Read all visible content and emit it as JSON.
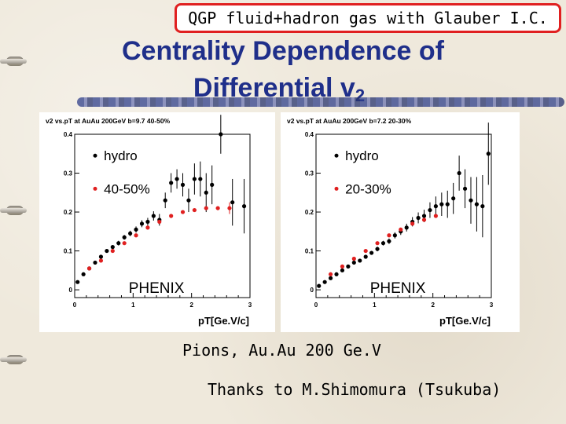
{
  "banner": "QGP fluid+hadron gas with Glauber I.C.",
  "title_line1": "Centrality Dependence of",
  "title_line2_text": "Differential v",
  "title_line2_sub": "2",
  "caption_line1": "Pions, Au.Au 200 Ge.V",
  "caption_line2": "Thanks to M.Shimomura (Tsukuba)",
  "colors": {
    "title": "#1f2f8a",
    "banner_border": "#e02020",
    "hydro": "#e02020",
    "data": "#000000"
  },
  "chart_data": [
    {
      "type": "scatter",
      "title": "v2 vs.pT at AuAu 200GeV b=9.7 40-50%",
      "xlabel": "pT[Ge.V/c]",
      "ylabel": "",
      "xlim": [
        0,
        3
      ],
      "ylim": [
        -0.02,
        0.4
      ],
      "x_ticks": [
        "0",
        "1",
        "2",
        "3"
      ],
      "y_ticks": [
        "0",
        "0.1",
        "0.2",
        "0.3",
        "0.4"
      ],
      "legend": [
        "hydro",
        "40-50%"
      ],
      "annotation": "PHENIX",
      "series": [
        {
          "name": "hydro",
          "color": "#000000",
          "x": [
            0.05,
            0.15,
            0.25,
            0.35,
            0.45,
            0.55,
            0.65,
            0.75,
            0.85,
            0.95,
            1.05,
            1.15,
            1.25,
            1.35,
            1.45,
            1.55,
            1.65,
            1.75,
            1.85,
            1.95,
            2.05,
            2.15,
            2.25,
            2.35,
            2.5,
            2.7,
            2.9
          ],
          "y": [
            0.02,
            0.04,
            0.055,
            0.07,
            0.085,
            0.1,
            0.11,
            0.12,
            0.135,
            0.145,
            0.155,
            0.17,
            0.175,
            0.19,
            0.18,
            0.23,
            0.275,
            0.285,
            0.27,
            0.23,
            0.285,
            0.285,
            0.25,
            0.27,
            0.4,
            0.225,
            0.215
          ],
          "err": [
            0.003,
            0.003,
            0.004,
            0.004,
            0.005,
            0.005,
            0.005,
            0.006,
            0.006,
            0.007,
            0.008,
            0.009,
            0.01,
            0.012,
            0.015,
            0.02,
            0.025,
            0.025,
            0.03,
            0.03,
            0.04,
            0.045,
            0.05,
            0.05,
            0.05,
            0.06,
            0.07
          ]
        },
        {
          "name": "40-50%",
          "color": "#e02020",
          "x": [
            0.25,
            0.45,
            0.65,
            0.85,
            1.05,
            1.25,
            1.45,
            1.65,
            1.85,
            2.05,
            2.25,
            2.45,
            2.65
          ],
          "y": [
            0.055,
            0.075,
            0.1,
            0.12,
            0.14,
            0.16,
            0.175,
            0.19,
            0.2,
            0.205,
            0.21,
            0.21,
            0.21
          ],
          "err": [
            0,
            0,
            0,
            0,
            0,
            0,
            0,
            0,
            0,
            0,
            0,
            0,
            0.015
          ]
        }
      ]
    },
    {
      "type": "scatter",
      "title": "v2 vs.pT at AuAu 200GeV b=7.2 20-30%",
      "xlabel": "pT[Ge.V/c]",
      "ylabel": "",
      "xlim": [
        0,
        3
      ],
      "ylim": [
        -0.02,
        0.4
      ],
      "x_ticks": [
        "0",
        "1",
        "2",
        "3"
      ],
      "y_ticks": [
        "0",
        "0.1",
        "0.2",
        "0.3",
        "0.4"
      ],
      "legend": [
        "hydro",
        "20-30%"
      ],
      "annotation": "PHENIX",
      "series": [
        {
          "name": "hydro",
          "color": "#000000",
          "x": [
            0.05,
            0.15,
            0.25,
            0.35,
            0.45,
            0.55,
            0.65,
            0.75,
            0.85,
            0.95,
            1.05,
            1.15,
            1.25,
            1.35,
            1.45,
            1.55,
            1.65,
            1.75,
            1.85,
            1.95,
            2.05,
            2.15,
            2.25,
            2.35,
            2.45,
            2.55,
            2.65,
            2.75,
            2.85,
            2.95
          ],
          "y": [
            0.01,
            0.02,
            0.03,
            0.04,
            0.05,
            0.06,
            0.07,
            0.075,
            0.085,
            0.095,
            0.105,
            0.12,
            0.125,
            0.14,
            0.15,
            0.16,
            0.175,
            0.185,
            0.19,
            0.205,
            0.215,
            0.22,
            0.22,
            0.235,
            0.3,
            0.26,
            0.23,
            0.22,
            0.215,
            0.35
          ],
          "err": [
            0.002,
            0.002,
            0.003,
            0.003,
            0.003,
            0.004,
            0.004,
            0.004,
            0.005,
            0.005,
            0.006,
            0.006,
            0.007,
            0.008,
            0.009,
            0.01,
            0.012,
            0.014,
            0.016,
            0.02,
            0.025,
            0.03,
            0.035,
            0.04,
            0.045,
            0.05,
            0.06,
            0.07,
            0.08,
            0.08
          ]
        },
        {
          "name": "20-30%",
          "color": "#e02020",
          "x": [
            0.25,
            0.45,
            0.65,
            0.85,
            1.05,
            1.25,
            1.45,
            1.65,
            1.85,
            2.05
          ],
          "y": [
            0.04,
            0.06,
            0.08,
            0.1,
            0.12,
            0.14,
            0.155,
            0.17,
            0.18,
            0.19
          ],
          "err": [
            0,
            0,
            0,
            0,
            0,
            0,
            0,
            0,
            0,
            0
          ]
        }
      ]
    }
  ]
}
